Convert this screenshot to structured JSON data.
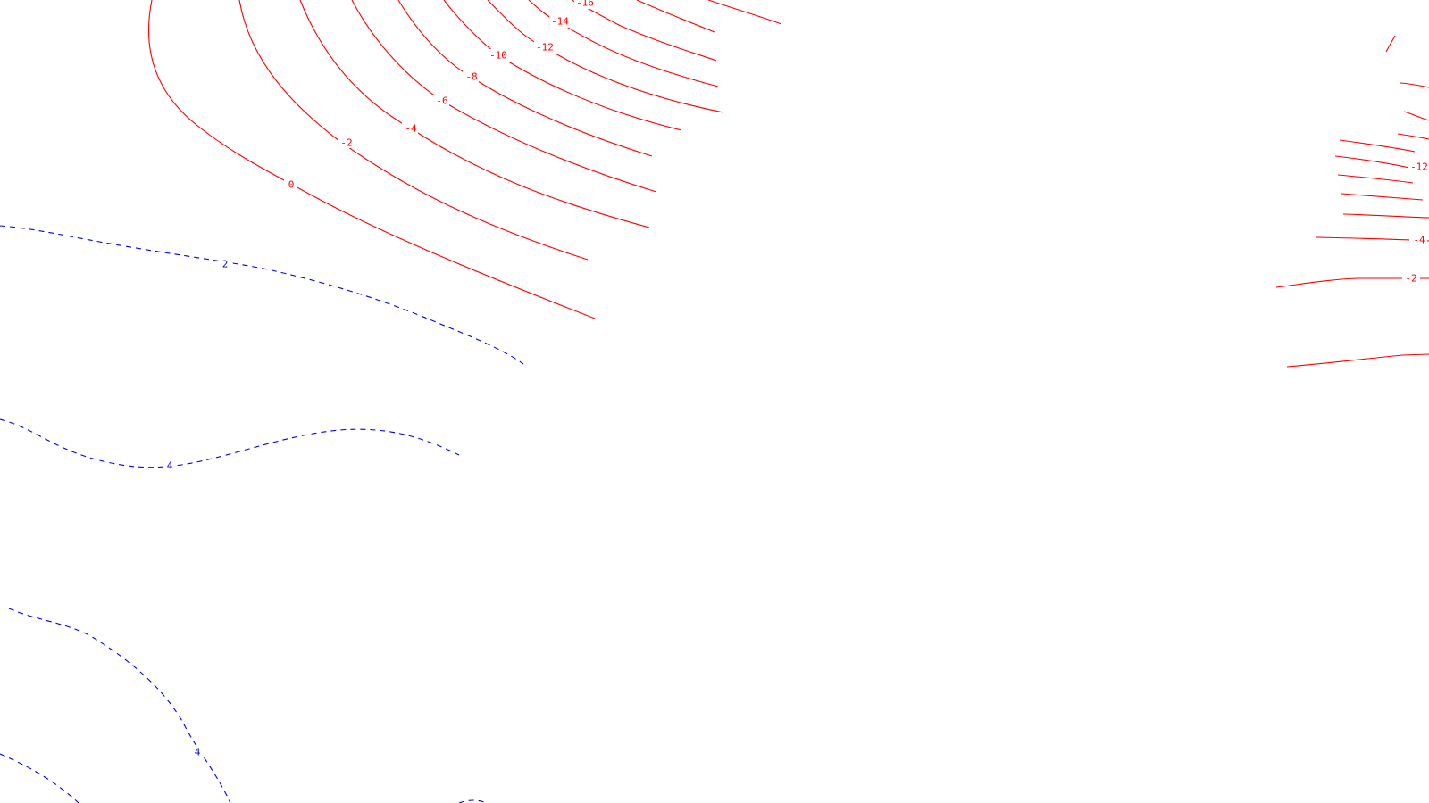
{
  "map": {
    "colors": {
      "negative": "#ff0000",
      "positive": "#0000ee",
      "background": "#ffffff"
    },
    "contour_labels_negative": [
      "0",
      "-2",
      "-4",
      "-6",
      "-8",
      "-10",
      "-12",
      "-14",
      "-16"
    ],
    "contour_labels_positive": [
      "2",
      "4",
      "4"
    ],
    "contour_labels_right": [
      "-12",
      "-4",
      "-2"
    ]
  }
}
